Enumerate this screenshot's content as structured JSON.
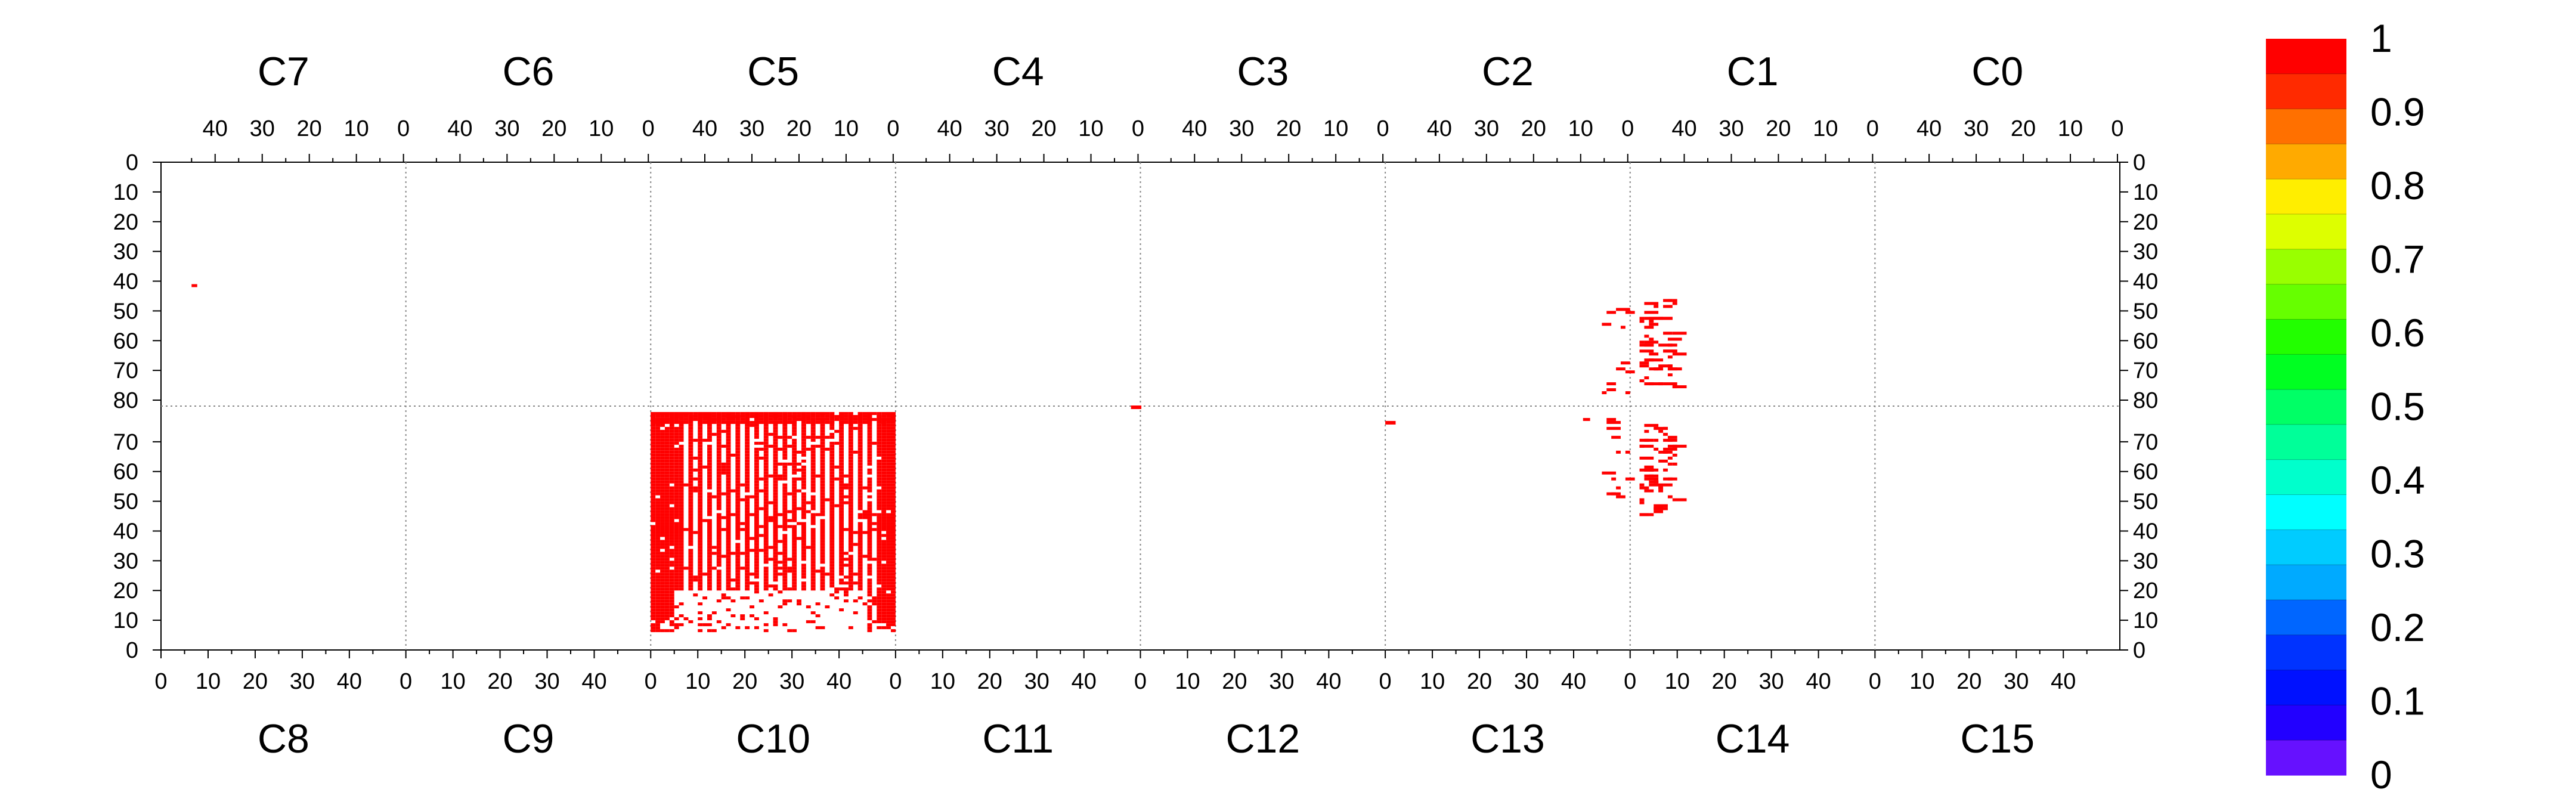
{
  "chart_data": {
    "type": "heatmap",
    "title": "",
    "chip_rows": {
      "top": {
        "labels": [
          "C7",
          "C6",
          "C5",
          "C4",
          "C3",
          "C2",
          "C1",
          "C0"
        ],
        "tick_labels": [
          "40",
          "30",
          "20",
          "10",
          "0"
        ]
      },
      "bottom": {
        "labels": [
          "C8",
          "C9",
          "C10",
          "C11",
          "C12",
          "C13",
          "C14",
          "C15"
        ],
        "tick_labels": [
          "0",
          "10",
          "20",
          "30",
          "40"
        ]
      }
    },
    "y_axis": {
      "top_half": [
        "0",
        "10",
        "20",
        "30",
        "40",
        "50",
        "60",
        "70",
        "80"
      ],
      "bottom_half": [
        "70",
        "60",
        "50",
        "40",
        "30",
        "20",
        "10",
        "0"
      ]
    },
    "colorbar": {
      "labels": [
        "1",
        "0.9",
        "0.8",
        "0.7",
        "0.6",
        "0.5",
        "0.4",
        "0.3",
        "0.2",
        "0.1",
        "0"
      ],
      "colors_top_to_bottom": [
        "#ff0000",
        "#ff2a00",
        "#ff7000",
        "#ffaa00",
        "#ffee00",
        "#ddff00",
        "#99ff00",
        "#66ff00",
        "#22ff00",
        "#00ff22",
        "#00ff66",
        "#00ff99",
        "#00ffcc",
        "#00ffff",
        "#00ccff",
        "#00aaff",
        "#0066ff",
        "#0033ff",
        "#0011ff",
        "#2200ff",
        "#6611ff"
      ]
    },
    "grid": "dotted chip boundaries",
    "hot_regions": [
      {
        "chip": "C10",
        "col_range": [
          0,
          52
        ],
        "row_range": [
          6,
          80
        ],
        "value": 1,
        "pattern": "striped"
      },
      {
        "chip": "C7",
        "col": 45,
        "row": 41,
        "value": 1
      },
      {
        "chip": "C4",
        "col": 1,
        "row": 80,
        "value": 1
      },
      {
        "chip": "C12/C13",
        "col": 0,
        "row": 77,
        "value": 1
      },
      {
        "chip": "C1/C2",
        "region": "scattered cluster near column 0",
        "value": 1
      },
      {
        "chip": "C14/C13",
        "region": "scattered cluster near column 0",
        "value": 1
      }
    ]
  }
}
